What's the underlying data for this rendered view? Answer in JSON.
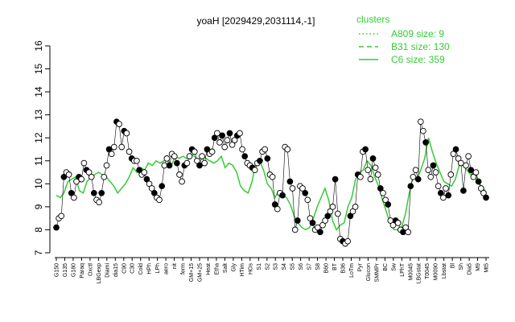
{
  "chart_data": {
    "type": "line",
    "title": "yoaH [2029429,2031114,-1]",
    "xlabel": "",
    "ylabel": "",
    "ylim": [
      7,
      16
    ],
    "yticks": [
      7,
      8,
      9,
      10,
      11,
      12,
      13,
      14,
      15,
      16
    ],
    "grid": false,
    "legend_title": "clusters",
    "legend_position": "top-right",
    "legend": [
      {
        "label": "A809 size: 9",
        "style": "dotted",
        "color": "#33cc33"
      },
      {
        "label": "B31 size: 130",
        "style": "dashed",
        "color": "#33cc33"
      },
      {
        "label": "C6 size: 359",
        "style": "solid",
        "color": "#33cc33"
      }
    ],
    "xtick_labels": [
      "G150",
      "G135",
      "G180",
      "Paraq",
      "Oxctl",
      "LBGexp",
      "Diami",
      "dia15",
      "C90",
      "C30",
      "Cold",
      "HPh",
      "LPh",
      "aero",
      "nit",
      "ferm",
      "GM+15",
      "GM+25",
      "Heat",
      "Etha",
      "Salt",
      "Gly",
      "HTim",
      "HOs",
      "S1",
      "S2",
      "S3",
      "S4",
      "S5",
      "S6",
      "S7",
      "S8",
      "B60",
      "BT",
      "B36",
      "LoTm",
      "Pyr",
      "Glucon",
      "SMMPr",
      "BC",
      "Sw",
      "LPhT",
      "M0045",
      "LBGstat",
      "T0045",
      "M0090",
      "Lbstat",
      "Bl",
      "Sh",
      "Dia5",
      "M9",
      "Mt5"
    ],
    "series": [
      {
        "color": "#33cc33",
        "values": [
          9.5,
          9.4,
          9.6,
          10.1,
          10.2,
          10.3,
          9.7,
          9.6,
          10.1,
          10.3,
          10.4,
          10.5,
          10.4,
          10.3,
          10.1,
          9.9,
          9.6,
          9.8,
          10.0,
          10.3,
          10.7,
          10.5,
          10.7,
          10.6,
          10.9,
          10.8,
          11.0,
          10.9,
          11.0,
          11.1,
          10.8,
          11.2,
          11.1,
          11.2,
          11.1,
          11.3,
          11.2,
          11.0,
          11.3,
          11.1,
          11.0,
          10.9,
          11.0,
          11.2,
          10.7,
          10.9,
          10.8,
          10.5,
          9.9,
          9.7,
          9.6,
          10.1,
          10.9,
          11.0,
          10.6,
          10.0,
          9.8,
          9.4,
          9.7,
          9.5,
          9.4,
          9.1,
          8.6,
          8.3,
          8.1,
          8.0,
          8.1,
          8.5,
          9.0,
          9.4,
          9.8,
          9.3,
          8.4,
          8.0,
          8.2,
          8.3,
          9.0,
          9.4,
          10.2,
          10.5,
          10.6,
          11.0,
          10.8,
          10.3,
          9.9,
          9.3,
          8.8,
          8.3,
          8.0,
          8.0,
          8.1,
          8.7,
          9.6,
          10.3,
          10.2,
          10.6,
          11.1,
          12.0,
          11.4,
          10.9,
          10.5,
          10.1,
          10.0,
          9.9,
          10.2,
          10.8,
          10.9,
          10.6,
          10.4,
          10.5,
          10.0,
          9.9,
          9.6
        ]
      }
    ],
    "points": [
      8.1,
      8.5,
      8.6,
      10.3,
      10.5,
      10.4,
      9.6,
      9.4,
      10.1,
      10.3,
      10.2,
      10.9,
      10.6,
      10.5,
      10.3,
      9.6,
      9.3,
      9.2,
      9.6,
      10.3,
      10.8,
      11.5,
      11.3,
      11.6,
      12.7,
      12.6,
      11.6,
      12.3,
      12.2,
      11.4,
      11.1,
      11.0,
      11.0,
      10.6,
      10.4,
      10.5,
      10.2,
      10.0,
      9.8,
      9.6,
      9.4,
      9.3,
      9.9,
      10.8,
      11.1,
      10.8,
      11.3,
      11.2,
      10.9,
      10.4,
      10.1,
      10.8,
      10.9,
      11.2,
      11.5,
      11.4,
      11.0,
      10.8,
      11.2,
      10.9,
      11.5,
      11.3,
      11.4,
      12.0,
      12.2,
      11.8,
      12.1,
      11.6,
      11.9,
      12.2,
      11.7,
      11.9,
      12.1,
      12.2,
      11.5,
      11.2,
      10.9,
      10.8,
      10.7,
      10.6,
      10.9,
      11.0,
      11.4,
      11.5,
      11.1,
      10.4,
      10.3,
      9.1,
      8.9,
      9.6,
      9.5,
      11.6,
      11.5,
      10.1,
      9.8,
      8.0,
      8.4,
      9.9,
      9.8,
      9.6,
      9.3,
      8.5,
      8.3,
      8.0,
      8.1,
      7.9,
      8.2,
      8.4,
      8.6,
      8.8,
      9.0,
      10.2,
      8.7,
      7.6,
      7.5,
      7.4,
      7.5,
      8.6,
      8.8,
      9.0,
      10.4,
      10.3,
      11.4,
      11.5,
      10.6,
      10.2,
      11.1,
      10.7,
      10.4,
      9.8,
      9.6,
      9.3,
      9.1,
      8.4,
      8.2,
      8.4,
      8.3,
      8.0,
      7.9,
      8.1,
      7.9,
      9.9,
      10.3,
      10.6,
      10.2,
      12.7,
      12.3,
      11.8,
      10.6,
      10.3,
      10.8,
      10.5,
      9.9,
      9.6,
      9.4,
      9.8,
      9.5,
      10.4,
      11.3,
      11.5,
      11.1,
      10.9,
      9.7,
      10.8,
      11.2,
      10.6,
      10.3,
      10.5,
      10.1,
      9.8,
      9.6,
      9.4
    ]
  }
}
